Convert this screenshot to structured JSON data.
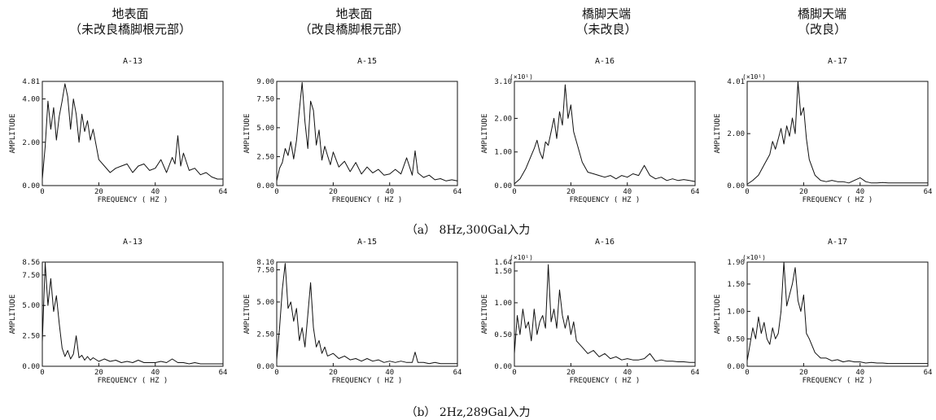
{
  "columns": [
    {
      "line1": "地表面",
      "line2": "（未改良橋脚根元部）"
    },
    {
      "line1": "地表面",
      "line2": "（改良橋脚根元部）"
    },
    {
      "line1": "橋脚天端",
      "line2": "（未改良）"
    },
    {
      "line1": "橋脚天端",
      "line2": "（改良）"
    }
  ],
  "captions": {
    "a": "（a） 8Hz,300Gal入力",
    "b": "（b） 2Hz,289Gal入力"
  },
  "chart_data": [
    {
      "type": "line",
      "title": "A-13",
      "xlabel": "FREQUENCY ( HZ )",
      "ylabel": "AMPLITUDE",
      "multiplier": "",
      "xlim": [
        0,
        64
      ],
      "ylim": [
        0,
        4.81
      ],
      "yticks": [
        "0.00",
        "2.00",
        "4.00",
        "4.81"
      ],
      "xticks": [
        "0",
        "20",
        "40",
        "64"
      ],
      "series": [
        {
          "x": [
            0,
            1,
            2,
            3,
            4,
            5,
            6,
            7,
            8,
            9,
            10,
            11,
            12,
            13,
            14,
            15,
            16,
            17,
            18,
            19,
            20,
            22,
            24,
            26,
            28,
            30,
            32,
            34,
            36,
            38,
            40,
            42,
            44,
            46,
            47,
            48,
            49,
            50,
            52,
            54,
            56,
            58,
            60,
            62,
            64
          ],
          "y": [
            0.3,
            1.8,
            3.9,
            2.6,
            3.6,
            2.1,
            3.2,
            3.9,
            4.7,
            4.1,
            2.6,
            4.0,
            3.3,
            2.0,
            3.3,
            2.5,
            3.0,
            2.1,
            2.6,
            1.9,
            1.2,
            0.9,
            0.6,
            0.8,
            0.9,
            1.0,
            0.6,
            0.9,
            1.0,
            0.7,
            0.8,
            1.2,
            0.6,
            1.3,
            1.0,
            2.3,
            0.9,
            1.5,
            0.7,
            0.8,
            0.5,
            0.6,
            0.4,
            0.3,
            0.3
          ]
        }
      ]
    },
    {
      "type": "line",
      "title": "A-15",
      "xlabel": "FREQUENCY ( HZ )",
      "ylabel": "AMPLITUDE",
      "multiplier": "",
      "xlim": [
        0,
        64
      ],
      "ylim": [
        0,
        9.0
      ],
      "yticks": [
        "0.00",
        "2.50",
        "5.00",
        "7.50",
        "9.00"
      ],
      "xticks": [
        "0",
        "20",
        "40",
        "64"
      ],
      "series": [
        {
          "x": [
            0,
            1,
            2,
            3,
            4,
            5,
            6,
            7,
            8,
            9,
            10,
            11,
            12,
            13,
            14,
            15,
            16,
            17,
            18,
            19,
            20,
            22,
            24,
            26,
            28,
            30,
            32,
            34,
            36,
            38,
            40,
            42,
            44,
            46,
            48,
            49,
            50,
            52,
            54,
            56,
            58,
            60,
            62,
            64
          ],
          "y": [
            0.4,
            1.5,
            2.0,
            3.2,
            2.6,
            3.8,
            2.3,
            3.9,
            6.5,
            8.9,
            5.5,
            3.2,
            7.3,
            6.5,
            3.5,
            4.8,
            2.2,
            3.4,
            2.6,
            1.8,
            2.9,
            1.6,
            2.1,
            1.2,
            2.0,
            1.0,
            1.6,
            1.1,
            1.4,
            0.9,
            1.0,
            1.4,
            1.0,
            2.4,
            0.9,
            3.0,
            1.1,
            0.7,
            0.9,
            0.5,
            0.6,
            0.4,
            0.5,
            0.4
          ]
        }
      ]
    },
    {
      "type": "line",
      "title": "A-16",
      "xlabel": "FREQUENCY ( HZ )",
      "ylabel": "AMPLITUDE",
      "multiplier": "(×10¹)",
      "xlim": [
        0,
        64
      ],
      "ylim": [
        0,
        3.1
      ],
      "yticks": [
        "0.00",
        "1.00",
        "2.00",
        "3.10"
      ],
      "xticks": [
        "0",
        "20",
        "40",
        "64"
      ],
      "series": [
        {
          "x": [
            0,
            2,
            4,
            6,
            7,
            8,
            9,
            10,
            11,
            12,
            13,
            14,
            15,
            16,
            17,
            18,
            19,
            20,
            21,
            22,
            24,
            26,
            28,
            30,
            32,
            34,
            36,
            38,
            40,
            42,
            44,
            46,
            48,
            50,
            52,
            54,
            56,
            58,
            60,
            62,
            64
          ],
          "y": [
            0.05,
            0.2,
            0.5,
            0.9,
            1.1,
            1.35,
            1.0,
            0.8,
            1.3,
            1.2,
            1.6,
            2.0,
            1.4,
            2.2,
            1.8,
            3.0,
            2.0,
            2.4,
            1.6,
            1.3,
            0.7,
            0.4,
            0.35,
            0.3,
            0.25,
            0.3,
            0.2,
            0.3,
            0.25,
            0.35,
            0.3,
            0.6,
            0.3,
            0.2,
            0.25,
            0.15,
            0.2,
            0.15,
            0.18,
            0.15,
            0.12
          ]
        }
      ]
    },
    {
      "type": "line",
      "title": "A-17",
      "xlabel": "FREQUENCY ( HZ )",
      "ylabel": "AMPLITUDE",
      "multiplier": "(×10¹)",
      "xlim": [
        0,
        64
      ],
      "ylim": [
        0,
        4.01
      ],
      "yticks": [
        "0.00",
        "2.00",
        "4.01"
      ],
      "xticks": [
        "0",
        "20",
        "40",
        "64"
      ],
      "series": [
        {
          "x": [
            0,
            2,
            4,
            6,
            8,
            9,
            10,
            11,
            12,
            13,
            14,
            15,
            16,
            17,
            18,
            19,
            20,
            21,
            22,
            24,
            26,
            28,
            30,
            32,
            34,
            36,
            38,
            40,
            42,
            44,
            46,
            48,
            50,
            52,
            54,
            56,
            58,
            60,
            62,
            64
          ],
          "y": [
            0.05,
            0.2,
            0.4,
            0.8,
            1.2,
            1.7,
            1.4,
            1.8,
            2.2,
            1.6,
            2.3,
            1.9,
            2.6,
            2.0,
            4.0,
            2.7,
            3.0,
            1.8,
            1.0,
            0.4,
            0.2,
            0.15,
            0.2,
            0.15,
            0.15,
            0.1,
            0.2,
            0.3,
            0.15,
            0.1,
            0.1,
            0.12,
            0.1,
            0.1,
            0.1,
            0.1,
            0.1,
            0.1,
            0.1,
            0.1
          ]
        }
      ]
    },
    {
      "type": "line",
      "title": "A-13",
      "xlabel": "FREQUENCY ( HZ )",
      "ylabel": "AMPLITUDE",
      "multiplier": "",
      "xlim": [
        0,
        64
      ],
      "ylim": [
        0,
        8.56
      ],
      "yticks": [
        "0.00",
        "2.50",
        "5.00",
        "7.50",
        "8.56"
      ],
      "xticks": [
        "0",
        "20",
        "40",
        "64"
      ],
      "series": [
        {
          "x": [
            0,
            1,
            2,
            3,
            4,
            5,
            6,
            7,
            8,
            9,
            10,
            11,
            12,
            13,
            14,
            15,
            16,
            17,
            18,
            20,
            22,
            24,
            26,
            28,
            30,
            32,
            34,
            36,
            38,
            40,
            42,
            44,
            46,
            48,
            50,
            52,
            54,
            56,
            58,
            60,
            62,
            64
          ],
          "y": [
            2.0,
            8.5,
            5.0,
            7.2,
            4.5,
            5.8,
            3.5,
            1.5,
            0.8,
            1.3,
            0.6,
            1.0,
            2.5,
            0.7,
            0.9,
            0.5,
            0.8,
            0.5,
            0.7,
            0.4,
            0.6,
            0.4,
            0.5,
            0.3,
            0.4,
            0.3,
            0.5,
            0.3,
            0.3,
            0.3,
            0.4,
            0.3,
            0.6,
            0.3,
            0.3,
            0.2,
            0.3,
            0.2,
            0.2,
            0.2,
            0.2,
            0.2
          ]
        }
      ]
    },
    {
      "type": "line",
      "title": "A-15",
      "xlabel": "FREQUENCY ( HZ )",
      "ylabel": "AMPLITUDE",
      "multiplier": "",
      "xlim": [
        0,
        64
      ],
      "ylim": [
        0,
        8.1
      ],
      "yticks": [
        "0.00",
        "2.50",
        "5.00",
        "7.50",
        "8.10"
      ],
      "xticks": [
        "0",
        "20",
        "40",
        "64"
      ],
      "series": [
        {
          "x": [
            0,
            1,
            2,
            3,
            4,
            5,
            6,
            7,
            8,
            9,
            10,
            11,
            12,
            13,
            14,
            15,
            16,
            17,
            18,
            20,
            22,
            24,
            26,
            28,
            30,
            32,
            34,
            36,
            38,
            40,
            42,
            44,
            46,
            48,
            49,
            50,
            52,
            54,
            56,
            58,
            60,
            62,
            64
          ],
          "y": [
            0.5,
            3.0,
            6.0,
            8.0,
            4.5,
            5.0,
            3.5,
            4.5,
            2.0,
            3.0,
            1.5,
            4.0,
            6.5,
            3.0,
            1.5,
            2.0,
            1.0,
            1.5,
            0.8,
            1.0,
            0.6,
            0.8,
            0.5,
            0.6,
            0.4,
            0.6,
            0.4,
            0.5,
            0.3,
            0.4,
            0.3,
            0.4,
            0.3,
            0.3,
            1.1,
            0.3,
            0.3,
            0.2,
            0.3,
            0.2,
            0.2,
            0.2,
            0.2
          ]
        }
      ]
    },
    {
      "type": "line",
      "title": "A-16",
      "xlabel": "FREQUENCY ( HZ )",
      "ylabel": "AMPLITUDE",
      "multiplier": "(×10¹)",
      "xlim": [
        0,
        64
      ],
      "ylim": [
        0,
        1.64
      ],
      "yticks": [
        "0.00",
        "0.50",
        "1.00",
        "1.50",
        "1.64"
      ],
      "xticks": [
        "0",
        "20",
        "40",
        "64"
      ],
      "series": [
        {
          "x": [
            0,
            1,
            2,
            3,
            4,
            5,
            6,
            7,
            8,
            9,
            10,
            11,
            12,
            13,
            14,
            15,
            16,
            17,
            18,
            19,
            20,
            21,
            22,
            24,
            26,
            28,
            30,
            32,
            34,
            36,
            38,
            40,
            42,
            44,
            46,
            48,
            50,
            52,
            54,
            56,
            58,
            60,
            62,
            64
          ],
          "y": [
            0.2,
            0.8,
            0.5,
            0.9,
            0.6,
            0.7,
            0.4,
            0.9,
            0.5,
            0.7,
            0.8,
            0.6,
            1.6,
            0.7,
            0.9,
            0.6,
            1.2,
            0.8,
            0.6,
            0.8,
            0.5,
            0.7,
            0.4,
            0.3,
            0.2,
            0.25,
            0.15,
            0.2,
            0.12,
            0.15,
            0.1,
            0.12,
            0.1,
            0.1,
            0.12,
            0.2,
            0.08,
            0.1,
            0.08,
            0.08,
            0.07,
            0.07,
            0.06,
            0.06
          ]
        }
      ]
    },
    {
      "type": "line",
      "title": "A-17",
      "xlabel": "FREQUENCY ( HZ )",
      "ylabel": "AMPLITUDE",
      "multiplier": "(×10¹)",
      "xlim": [
        0,
        64
      ],
      "ylim": [
        0,
        1.9
      ],
      "yticks": [
        "0.00",
        "0.50",
        "1.00",
        "1.50",
        "1.90"
      ],
      "xticks": [
        "0",
        "20",
        "40",
        "64"
      ],
      "series": [
        {
          "x": [
            0,
            1,
            2,
            3,
            4,
            5,
            6,
            7,
            8,
            9,
            10,
            11,
            12,
            13,
            14,
            15,
            16,
            17,
            18,
            19,
            20,
            21,
            22,
            24,
            26,
            28,
            30,
            32,
            34,
            36,
            38,
            40,
            42,
            44,
            46,
            48,
            50,
            52,
            54,
            56,
            58,
            60,
            62,
            64
          ],
          "y": [
            0.1,
            0.4,
            0.7,
            0.5,
            0.9,
            0.6,
            0.8,
            0.5,
            0.4,
            0.7,
            0.5,
            0.6,
            1.0,
            1.9,
            1.1,
            1.3,
            1.5,
            1.8,
            1.2,
            1.0,
            1.3,
            0.6,
            0.5,
            0.25,
            0.15,
            0.15,
            0.1,
            0.12,
            0.08,
            0.1,
            0.08,
            0.08,
            0.06,
            0.07,
            0.06,
            0.06,
            0.05,
            0.05,
            0.05,
            0.05,
            0.05,
            0.05,
            0.05,
            0.05
          ]
        }
      ]
    }
  ]
}
